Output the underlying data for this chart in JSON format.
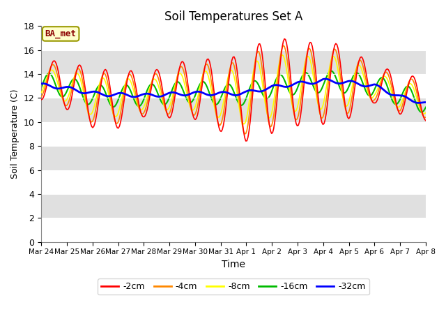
{
  "title": "Soil Temperatures Set A",
  "xlabel": "Time",
  "ylabel": "Soil Temperature (C)",
  "ylim": [
    0,
    18
  ],
  "yticks": [
    0,
    2,
    4,
    6,
    8,
    10,
    12,
    14,
    16,
    18
  ],
  "annotation_text": "BA_met",
  "annotation_color": "#8b0000",
  "annotation_bg": "#ffffcc",
  "annotation_border": "#999900",
  "line_colors": {
    "-2cm": "#ff0000",
    "-4cm": "#ff8800",
    "-8cm": "#ffff00",
    "-16cm": "#00bb00",
    "-32cm": "#0000ff"
  },
  "line_widths": {
    "-2cm": 1.2,
    "-4cm": 1.2,
    "-8cm": 1.2,
    "-16cm": 1.5,
    "-32cm": 2.0
  },
  "x_tick_labels": [
    "Mar 24",
    "Mar 25",
    "Mar 26",
    "Mar 27",
    "Mar 28",
    "Mar 29",
    "Mar 30",
    "Mar 31",
    "Apr 1",
    "Apr 2",
    "Apr 3",
    "Apr 4",
    "Apr 5",
    "Apr 6",
    "Apr 7",
    "Apr 8"
  ],
  "fig_bg_color": "#ffffff",
  "plot_bg_color": "#e8e8e8",
  "grid_color": "#ffffff",
  "legend_entries": [
    "-2cm",
    "-4cm",
    "-8cm",
    "-16cm",
    "-32cm"
  ],
  "legend_colors": [
    "#ff0000",
    "#ff8800",
    "#ffff00",
    "#00bb00",
    "#0000ff"
  ]
}
